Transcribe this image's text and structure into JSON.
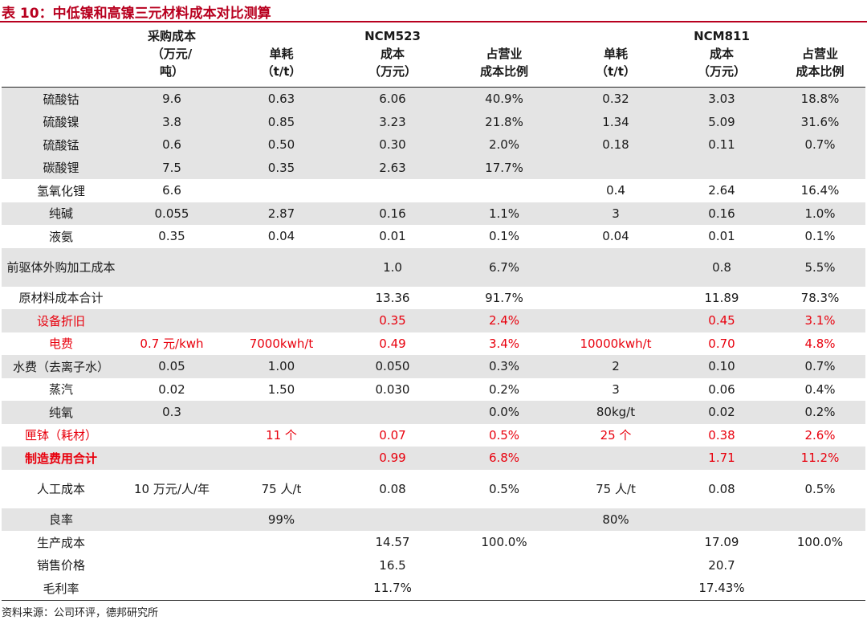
{
  "title": "表 10：中低镍和高镍三元材料成本对比测算",
  "header": {
    "purchase_cost": [
      "采购成本",
      "（万元/",
      "吨）"
    ],
    "group_ncm523": "NCM523",
    "group_ncm811": "NCM811",
    "unit_consumption": [
      "单耗",
      "（t/t）"
    ],
    "cost": [
      "成本",
      "（万元）"
    ],
    "share": [
      "占营业",
      "成本比例"
    ]
  },
  "rows": [
    {
      "label": "硫酸钴",
      "price": "9.6",
      "u523": "0.63",
      "c523": "6.06",
      "p523": "40.9%",
      "u811": "0.32",
      "c811": "3.03",
      "p811": "18.8%"
    },
    {
      "label": "硫酸镍",
      "price": "3.8",
      "u523": "0.85",
      "c523": "3.23",
      "p523": "21.8%",
      "u811": "1.34",
      "c811": "5.09",
      "p811": "31.6%"
    },
    {
      "label": "硫酸锰",
      "price": "0.6",
      "u523": "0.50",
      "c523": "0.30",
      "p523": "2.0%",
      "u811": "0.18",
      "c811": "0.11",
      "p811": "0.7%"
    },
    {
      "label": "碳酸锂",
      "price": "7.5",
      "u523": "0.35",
      "c523": "2.63",
      "p523": "17.7%",
      "u811": "",
      "c811": "",
      "p811": ""
    },
    {
      "label": "氢氧化锂",
      "price": "6.6",
      "u523": "",
      "c523": "",
      "p523": "",
      "u811": "0.4",
      "c811": "2.64",
      "p811": "16.4%"
    },
    {
      "label": "纯碱",
      "price": "0.055",
      "u523": "2.87",
      "c523": "0.16",
      "p523": "1.1%",
      "u811": "3",
      "c811": "0.16",
      "p811": "1.0%"
    },
    {
      "label": "液氨",
      "price": "0.35",
      "u523": "0.04",
      "c523": "0.01",
      "p523": "0.1%",
      "u811": "0.04",
      "c811": "0.01",
      "p811": "0.1%"
    },
    {
      "label": "前驱体外购加工成本",
      "price": "",
      "u523": "",
      "c523": "1.0",
      "p523": "6.7%",
      "u811": "",
      "c811": "0.8",
      "p811": "5.5%"
    },
    {
      "label": "原材料成本合计",
      "price": "",
      "u523": "",
      "c523": "13.36",
      "p523": "91.7%",
      "u811": "",
      "c811": "11.89",
      "p811": "78.3%"
    },
    {
      "label": "设备折旧",
      "price": "",
      "u523": "",
      "c523": "0.35",
      "p523": "2.4%",
      "u811": "",
      "c811": "0.45",
      "p811": "3.1%"
    },
    {
      "label": "电费",
      "price": "0.7 元/kwh",
      "u523": "7000kwh/t",
      "c523": "0.49",
      "p523": "3.4%",
      "u811": "10000kwh/t",
      "c811": "0.70",
      "p811": "4.8%"
    },
    {
      "label": "水费（去离子水）",
      "price": "0.05",
      "u523": "1.00",
      "c523": "0.050",
      "p523": "0.3%",
      "u811": "2",
      "c811": "0.10",
      "p811": "0.7%"
    },
    {
      "label": "蒸汽",
      "price": "0.02",
      "u523": "1.50",
      "c523": "0.030",
      "p523": "0.2%",
      "u811": "3",
      "c811": "0.06",
      "p811": "0.4%"
    },
    {
      "label": "纯氧",
      "price": "0.3",
      "u523": "",
      "c523": "",
      "p523": "0.0%",
      "u811": "80kg/t",
      "c811": "0.02",
      "p811": "0.2%"
    },
    {
      "label": "匣钵（耗材）",
      "price": "",
      "u523": "11 个",
      "c523": "0.07",
      "p523": "0.5%",
      "u811": "25 个",
      "c811": "0.38",
      "p811": "2.6%"
    },
    {
      "label": "制造费用合计",
      "price": "",
      "u523": "",
      "c523": "0.99",
      "p523": "6.8%",
      "u811": "",
      "c811": "1.71",
      "p811": "11.2%"
    },
    {
      "label": "人工成本",
      "price": "10 万元/人/年",
      "u523": "75 人/t",
      "c523": "0.08",
      "p523": "0.5%",
      "u811": "75 人/t",
      "c811": "0.08",
      "p811": "0.5%"
    },
    {
      "label": "良率",
      "price": "",
      "u523": "99%",
      "c523": "",
      "p523": "",
      "u811": "80%",
      "c811": "",
      "p811": ""
    },
    {
      "label": "生产成本",
      "price": "",
      "u523": "",
      "c523": "14.57",
      "p523": "100.0%",
      "u811": "",
      "c811": "17.09",
      "p811": "100.0%"
    },
    {
      "label": "销售价格",
      "price": "",
      "u523": "",
      "c523": "16.5",
      "p523": "",
      "u811": "",
      "c811": "20.7",
      "p811": ""
    },
    {
      "label": "毛利率",
      "price": "",
      "u523": "",
      "c523": "11.7%",
      "p523": "",
      "u811": "",
      "c811": "17.43%",
      "p811": ""
    }
  ],
  "source": "资料来源：公司环评，德邦研究所",
  "colors": {
    "accent": "#b8001f",
    "highlight_red": "#e8000d",
    "shade": "#e4e4e4"
  }
}
